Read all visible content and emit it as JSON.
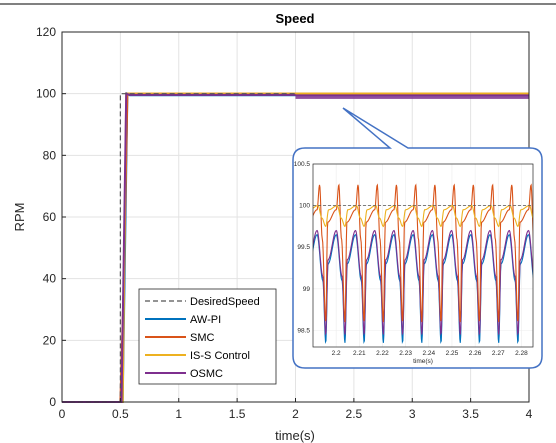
{
  "chart_data": {
    "type": "line",
    "title": "Speed",
    "xlabel": "time(s)",
    "ylabel": "RPM",
    "xlim": [
      0,
      4
    ],
    "ylim": [
      0,
      120
    ],
    "xticks": [
      "0",
      "0.5",
      "1",
      "1.5",
      "2",
      "2.5",
      "3",
      "3.5",
      "4"
    ],
    "yticks": [
      "0",
      "20",
      "40",
      "60",
      "80",
      "100",
      "120"
    ],
    "grid": true,
    "legend_position": "bottom-left",
    "series": [
      {
        "name": "DesiredSpeed",
        "color": "#555555",
        "style": "dashed",
        "x": [
          0,
          0.5,
          0.5,
          4
        ],
        "y": [
          0,
          0,
          100,
          100
        ]
      },
      {
        "name": "AW-PI",
        "color": "#0072BD",
        "style": "solid",
        "x": [
          0,
          0.52,
          0.56,
          0.58,
          2.0,
          4
        ],
        "y": [
          0,
          0,
          100,
          99.5,
          99.5,
          99.5
        ]
      },
      {
        "name": "SMC",
        "color": "#D95319",
        "style": "solid",
        "x": [
          0,
          0.5,
          0.53,
          0.56,
          0.58,
          2.0,
          4
        ],
        "y": [
          0,
          0,
          40,
          100,
          100,
          100,
          100
        ]
      },
      {
        "name": "IS-S Control",
        "color": "#EDB120",
        "style": "solid",
        "x": [
          0,
          0.52,
          0.55,
          0.58,
          2.0,
          4
        ],
        "y": [
          0,
          0,
          100,
          100,
          100,
          100
        ]
      },
      {
        "name": "OSMC",
        "color": "#7E2F8E",
        "style": "solid",
        "x": [
          0,
          0.51,
          0.55,
          0.58,
          2.0,
          4
        ],
        "y": [
          0,
          0,
          100,
          99.6,
          99.6,
          99.6
        ]
      }
    ],
    "inset": {
      "xlim": [
        2.19,
        2.285
      ],
      "ylim": [
        98.3,
        100.5
      ],
      "xlabel": "time(s)",
      "xticks": [
        "2.2",
        "2.21",
        "2.22",
        "2.23",
        "2.24",
        "2.25",
        "2.26",
        "2.27",
        "2.28"
      ],
      "yticks": [
        "98.5",
        "99",
        "99.5",
        "100",
        "100.5"
      ],
      "period": 0.0083,
      "first_dip": 2.1955
    }
  }
}
